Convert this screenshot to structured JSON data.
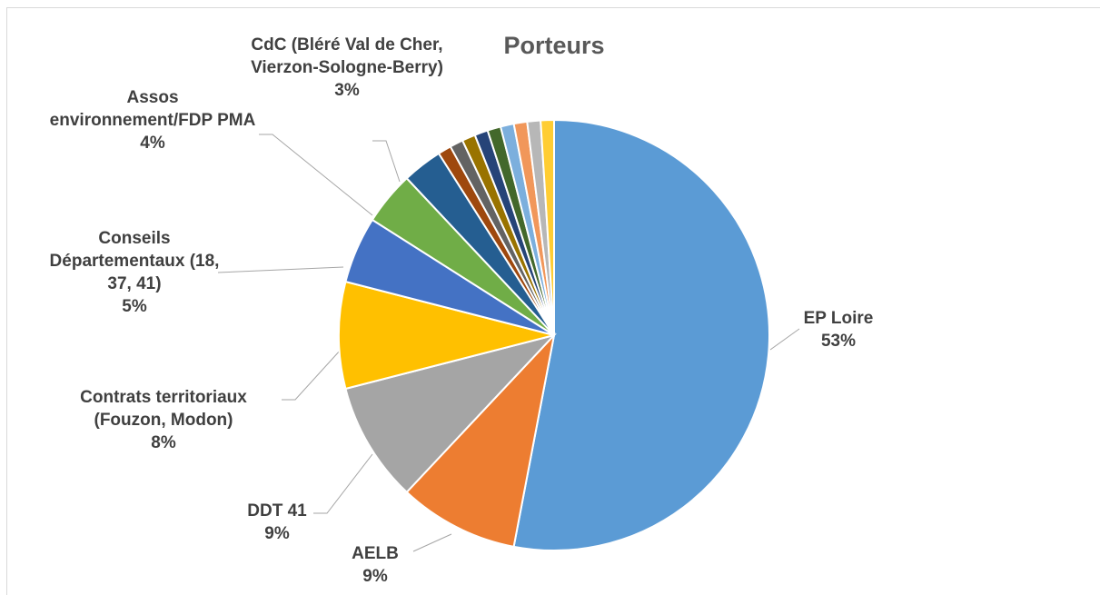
{
  "chart_data": {
    "type": "pie",
    "title": "Porteurs",
    "categories": [
      "EP Loire",
      "AELB",
      "DDT 41",
      "Contrats territoriaux (Fouzon, Modon)",
      "Conseils Départementaux (18, 37, 41)",
      "Assos environnement/FDP PMA",
      "CdC (Bléré Val de Cher, Vierzon-Sologne-Berry)",
      null,
      null,
      null,
      null,
      null,
      null,
      null,
      null,
      null
    ],
    "values": [
      53,
      9,
      9,
      8,
      5,
      4,
      3,
      1,
      1,
      1,
      1,
      1,
      1,
      1,
      1,
      1
    ],
    "value_labels": [
      "53%",
      "9%",
      "9%",
      "8%",
      "5%",
      "4%",
      "3%",
      null,
      null,
      null,
      null,
      null,
      null,
      null,
      null,
      null
    ],
    "colors": [
      "#5b9bd5",
      "#ed7d31",
      "#a5a5a5",
      "#ffc000",
      "#4472c4",
      "#70ad47",
      "#255e91",
      "#9e480e",
      "#636363",
      "#997300",
      "#264478",
      "#43682b",
      "#7cafdd",
      "#f1975a",
      "#b7b7b7",
      "#ffcd33"
    ]
  }
}
